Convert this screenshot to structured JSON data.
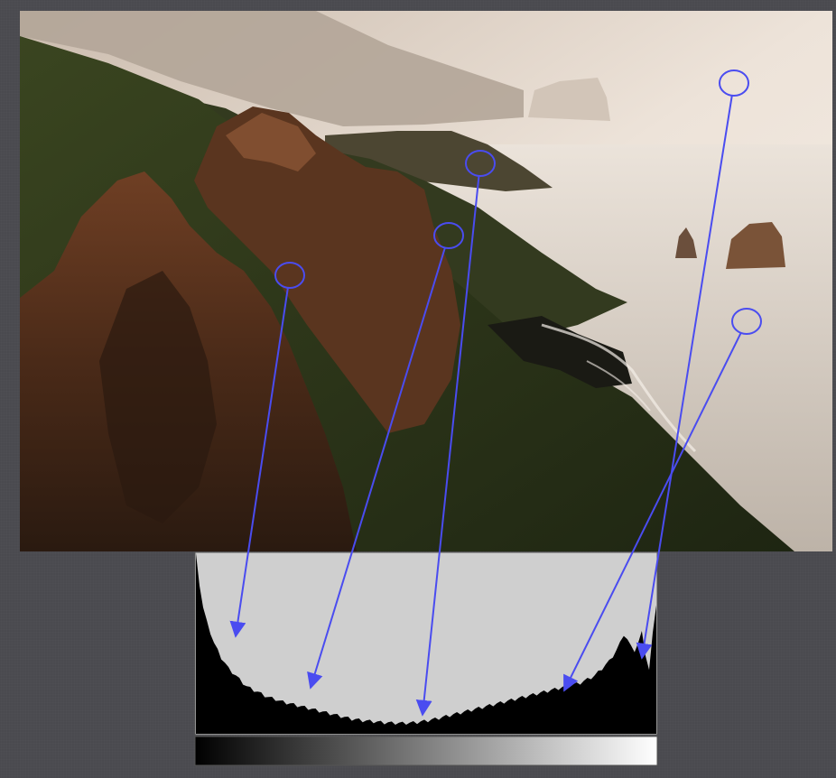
{
  "figure": {
    "photo_subject": "coastal-cliffs-at-sunset",
    "colors": {
      "page_background": "#4a4a4f",
      "annotation": "#4a4cf0",
      "histogram_fill": "#000000",
      "histogram_background": "#cfcfcf"
    }
  },
  "histogram": {
    "bins": 128,
    "levels": [
      1.0,
      0.82,
      0.7,
      0.62,
      0.56,
      0.5,
      0.46,
      0.42,
      0.39,
      0.36,
      0.34,
      0.32,
      0.3,
      0.28,
      0.26,
      0.25,
      0.24,
      0.23,
      0.22,
      0.21,
      0.2,
      0.195,
      0.19,
      0.18,
      0.175,
      0.17,
      0.165,
      0.16,
      0.155,
      0.15,
      0.145,
      0.14,
      0.135,
      0.13,
      0.125,
      0.12,
      0.115,
      0.11,
      0.105,
      0.1,
      0.095,
      0.09,
      0.085,
      0.08,
      0.078,
      0.075,
      0.072,
      0.07,
      0.068,
      0.066,
      0.064,
      0.062,
      0.06,
      0.06,
      0.058,
      0.058,
      0.057,
      0.057,
      0.058,
      0.058,
      0.06,
      0.062,
      0.065,
      0.068,
      0.072,
      0.076,
      0.08,
      0.085,
      0.09,
      0.095,
      0.1,
      0.105,
      0.11,
      0.115,
      0.12,
      0.125,
      0.13,
      0.135,
      0.14,
      0.145,
      0.15,
      0.155,
      0.16,
      0.165,
      0.17,
      0.175,
      0.18,
      0.185,
      0.19,
      0.195,
      0.2,
      0.205,
      0.21,
      0.215,
      0.22,
      0.225,
      0.23,
      0.235,
      0.24,
      0.245,
      0.25,
      0.255,
      0.26,
      0.265,
      0.27,
      0.275,
      0.28,
      0.29,
      0.3,
      0.31,
      0.32,
      0.34,
      0.36,
      0.38,
      0.4,
      0.43,
      0.46,
      0.5,
      0.55,
      0.52,
      0.48,
      0.46,
      0.5,
      0.56,
      0.44,
      0.35,
      0.55,
      0.72
    ],
    "gradient_bar": "black-to-white"
  },
  "callouts": [
    {
      "name": "callout-shadow-rock",
      "circle": [
        321,
        305
      ],
      "arrow_tip": [
        261,
        705
      ]
    },
    {
      "name": "callout-rock-face",
      "circle": [
        497,
        261
      ],
      "arrow_tip": [
        344,
        762
      ]
    },
    {
      "name": "callout-hill-shadow",
      "circle": [
        532,
        181
      ],
      "arrow_tip": [
        468,
        792
      ]
    },
    {
      "name": "callout-sea",
      "circle": [
        827,
        356
      ],
      "arrow_tip": [
        625,
        765
      ]
    },
    {
      "name": "callout-sky",
      "circle": [
        813,
        92
      ],
      "arrow_tip": [
        711,
        729
      ]
    }
  ]
}
